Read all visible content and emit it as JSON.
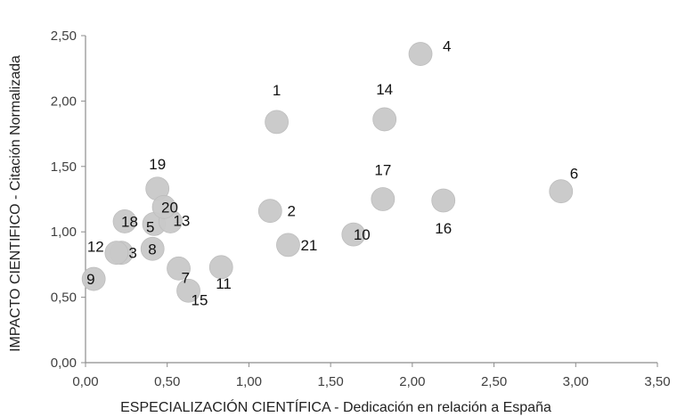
{
  "chart_data": {
    "type": "scatter",
    "xlabel": "ESPECIALIZACIÓN CIENTÍFICA - Dedicación en relación a España",
    "ylabel": "IMPACTO CIENTIFICO - Citación Normalizada",
    "xlim": [
      0,
      3.5
    ],
    "ylim": [
      0,
      2.5
    ],
    "x_ticks": [
      0,
      0.5,
      1,
      1.5,
      2,
      2.5,
      3,
      3.5
    ],
    "x_tick_labels": [
      "0,00",
      "0,50",
      "1,00",
      "1,50",
      "2,00",
      "2,50",
      "3,00",
      "3,50"
    ],
    "y_ticks": [
      0,
      0.5,
      1,
      1.5,
      2,
      2.5
    ],
    "y_tick_labels": [
      "0,00",
      "0,50",
      "1,00",
      "1,50",
      "2,00",
      "2,50"
    ],
    "grid": false,
    "marker_color": "#c8c8c8",
    "points": [
      {
        "label": "1",
        "x": 1.17,
        "y": 1.84
      },
      {
        "label": "2",
        "x": 1.13,
        "y": 1.16
      },
      {
        "label": "3",
        "x": 0.22,
        "y": 0.84
      },
      {
        "label": "4",
        "x": 2.05,
        "y": 2.36
      },
      {
        "label": "5",
        "x": 0.42,
        "y": 1.06
      },
      {
        "label": "6",
        "x": 2.91,
        "y": 1.31
      },
      {
        "label": "7",
        "x": 0.57,
        "y": 0.72
      },
      {
        "label": "8",
        "x": 0.41,
        "y": 0.87
      },
      {
        "label": "9",
        "x": 0.05,
        "y": 0.64
      },
      {
        "label": "10",
        "x": 1.64,
        "y": 0.98
      },
      {
        "label": "11",
        "x": 0.83,
        "y": 0.73
      },
      {
        "label": "12",
        "x": 0.19,
        "y": 0.84
      },
      {
        "label": "13",
        "x": 0.52,
        "y": 1.08
      },
      {
        "label": "14",
        "x": 1.83,
        "y": 1.86
      },
      {
        "label": "15",
        "x": 0.63,
        "y": 0.55
      },
      {
        "label": "16",
        "x": 2.19,
        "y": 1.24
      },
      {
        "label": "17",
        "x": 1.82,
        "y": 1.25
      },
      {
        "label": "18",
        "x": 0.24,
        "y": 1.08
      },
      {
        "label": "19",
        "x": 0.44,
        "y": 1.33
      },
      {
        "label": "20",
        "x": 0.48,
        "y": 1.19
      },
      {
        "label": "21",
        "x": 1.24,
        "y": 0.9
      }
    ]
  }
}
